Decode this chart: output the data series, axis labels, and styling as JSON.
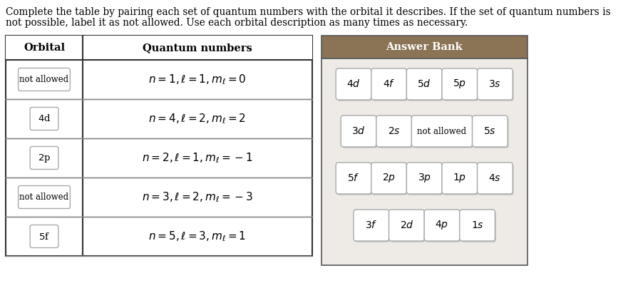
{
  "title_text1": "Complete the table by pairing each set of quantum numbers with the orbital it describes. If the set of quantum numbers is",
  "title_text2": "not possible, label it as not allowed. Use each orbital description as many times as necessary.",
  "table_header": [
    "Orbital",
    "Quantum numbers"
  ],
  "table_rows": [
    [
      "not allowed",
      "$n = 1, \\ell = 1, m_\\ell = 0$"
    ],
    [
      "4d",
      "$n = 4, \\ell = 2, m_\\ell = 2$"
    ],
    [
      "2p",
      "$n = 2, \\ell = 1, m_\\ell = -1$"
    ],
    [
      "not allowed",
      "$n = 3, \\ell = 2, m_\\ell = -3$"
    ],
    [
      "5f",
      "$n = 5, \\ell = 3, m_\\ell = 1$"
    ]
  ],
  "answer_bank_title": "Answer Bank",
  "answer_bank_header_color": "#8B7355",
  "answer_bank_bg_color": "#eeebe6",
  "answer_bank_items": [
    [
      "4d",
      "4f",
      "5d",
      "5p",
      "3s"
    ],
    [
      "3d",
      "2s",
      "not allowed",
      "5s"
    ],
    [
      "5f",
      "2p",
      "3p",
      "1p",
      "4s"
    ],
    [
      "3f",
      "2d",
      "4p",
      "1s"
    ]
  ],
  "background_color": "#ffffff"
}
